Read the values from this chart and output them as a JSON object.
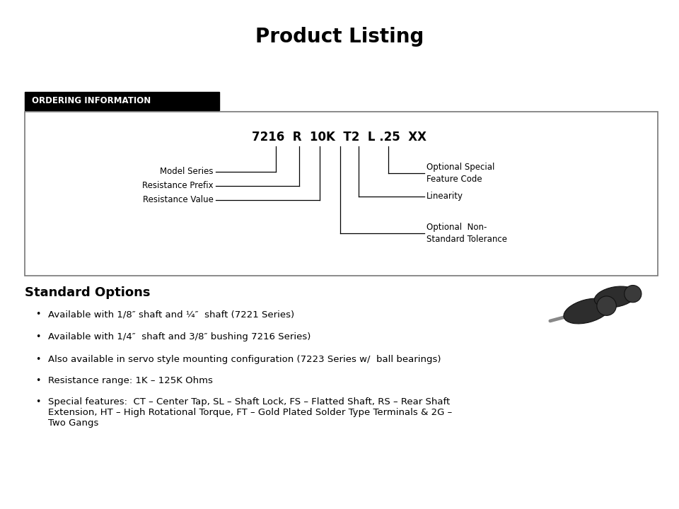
{
  "title": "Product Listing",
  "title_fontsize": 20,
  "bg_color": "#ffffff",
  "text_color": "#000000",
  "ordering_header": "ORDERING INFORMATION",
  "part_number": "7216  R  10K  T2  L .25  XX",
  "bullet_points": [
    "Available with 1/8″ shaft and ¼″  shaft (7221 Series)",
    "Available with 1/4″  shaft and 3/8″ bushing 7216 Series)",
    "Also available in servo style mounting configuration (7223 Series w/  ball bearings)",
    "Resistance range: 1K – 125K Ohms",
    "Special features:  CT – Center Tap, SL – Shaft Lock, FS – Flatted Shaft, RS – Rear Shaft\nExtension, HT – High Rotational Torque, FT – Gold Plated Solder Type Terminals & 2G –\nTwo Gangs"
  ],
  "section_title": "Standard Options"
}
